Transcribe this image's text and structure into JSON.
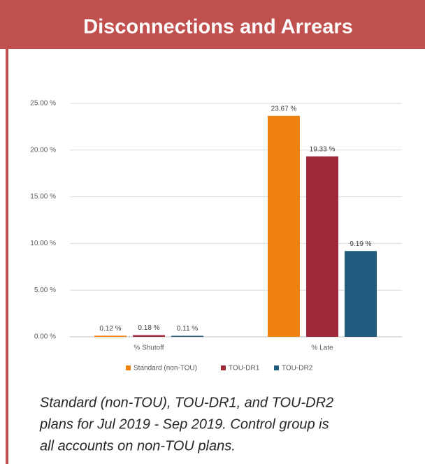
{
  "chart_data": {
    "type": "bar",
    "title": "Disconnections and Arrears",
    "categories": [
      "% Shutoff",
      "% Late"
    ],
    "series": [
      {
        "name": "Standard (non-TOU)",
        "color": "#f0820f",
        "values": [
          0.12,
          23.67
        ],
        "value_labels": [
          "0.12 %",
          "23.67 %"
        ]
      },
      {
        "name": "TOU-DR1",
        "color": "#a0293a",
        "values": [
          0.18,
          19.33
        ],
        "value_labels": [
          "0.18 %",
          "19.33 %"
        ]
      },
      {
        "name": "TOU-DR2",
        "color": "#1f5c7d",
        "values": [
          0.11,
          9.19
        ],
        "value_labels": [
          "0.11 %",
          "9.19 %"
        ]
      }
    ],
    "ylim": [
      0,
      25
    ],
    "yticks": [
      {
        "value": 0,
        "label": "0.00 %"
      },
      {
        "value": 5,
        "label": "5.00 %"
      },
      {
        "value": 10,
        "label": "10.00 %"
      },
      {
        "value": 15,
        "label": "15.00 %"
      },
      {
        "value": 20,
        "label": "20.00 %"
      },
      {
        "value": 25,
        "label": "25.00 %"
      }
    ],
    "grid": true,
    "legend": "bottom",
    "caption": [
      "Standard (non-TOU), TOU-DR1, and TOU-DR2",
      "plans for Jul 2019 - Sep 2019. Control group is",
      "all accounts on non-TOU plans."
    ]
  }
}
